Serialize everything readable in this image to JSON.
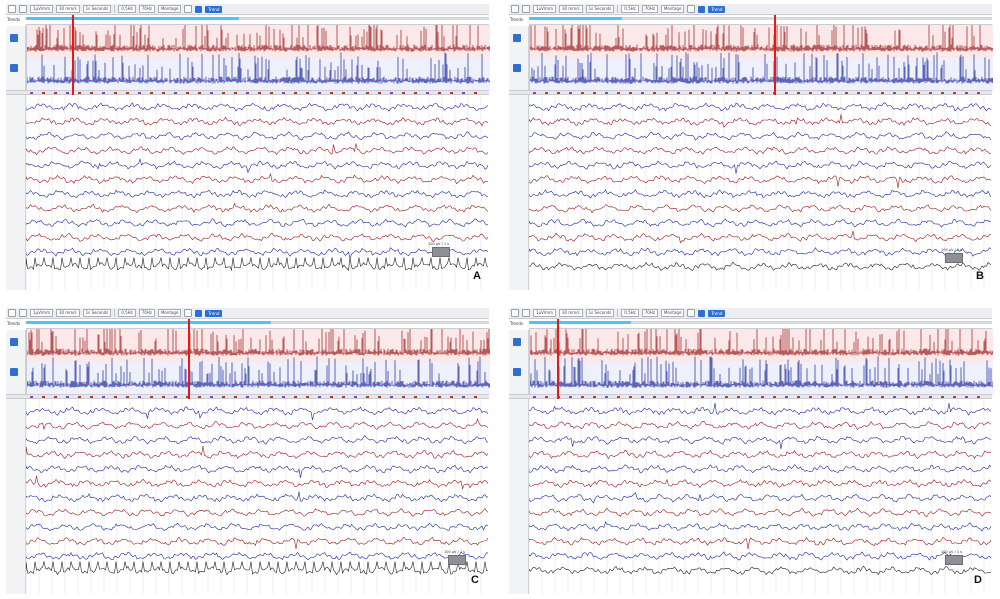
{
  "colors": {
    "red_trace": "#9b1b1b",
    "blue_trace": "#1f2a9a",
    "marker": "#e41a1a",
    "ecg_trace": "#222222",
    "progress": "#4fc3f7"
  },
  "panels": [
    {
      "letter": "A",
      "toolbar": {
        "field1": "1µV/mm",
        "field2": "30 mm/s",
        "field3": "1s Seconds",
        "field4": "0.5Hz",
        "field5": "70Hz",
        "field6": "Montage",
        "button": "Trend"
      },
      "side_label": "Trends",
      "scale_label": "100 µV / 1 s",
      "progress_fraction": 0.46,
      "marker_fraction": 0.1,
      "ecg_style": "spiky"
    },
    {
      "letter": "B",
      "toolbar": {
        "field1": "1µV/mm",
        "field2": "30 mm/s",
        "field3": "1s Seconds",
        "field4": "0.5Hz",
        "field5": "70Hz",
        "field6": "Montage",
        "button": "Trend"
      },
      "side_label": "Trends",
      "scale_label": "100 µV / 1 s",
      "progress_fraction": 0.2,
      "marker_fraction": 0.53,
      "ecg_style": "slow"
    },
    {
      "letter": "C",
      "toolbar": {
        "field1": "1µV/mm",
        "field2": "30 mm/s",
        "field3": "1s Seconds",
        "field4": "0.5Hz",
        "field5": "70Hz",
        "field6": "Montage",
        "button": "Trend"
      },
      "side_label": "Trends",
      "scale_label": "100 µV / 1 s",
      "progress_fraction": 0.53,
      "marker_fraction": 0.35,
      "ecg_style": "spiky"
    },
    {
      "letter": "D",
      "toolbar": {
        "field1": "1µV/mm",
        "field2": "30 mm/s",
        "field3": "1s Seconds",
        "field4": "0.5Hz",
        "field5": "70Hz",
        "field6": "Montage",
        "button": "Trend"
      },
      "side_label": "Trends",
      "scale_label": "100 µV / 1 s",
      "progress_fraction": 0.22,
      "marker_fraction": 0.06,
      "ecg_style": "slow"
    }
  ]
}
